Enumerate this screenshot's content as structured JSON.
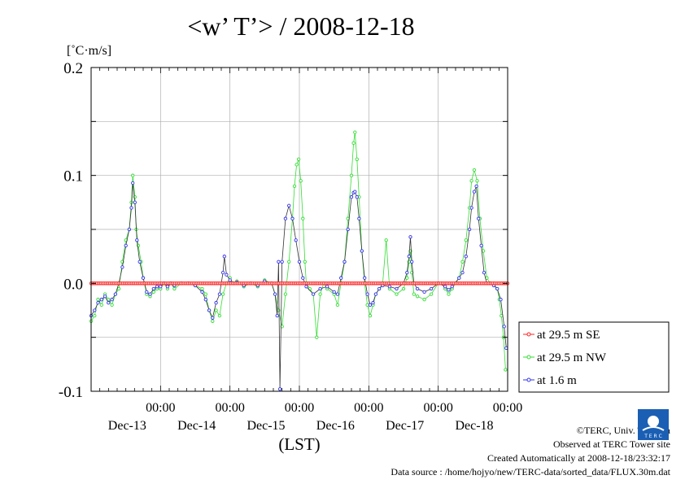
{
  "chart_data": {
    "type": "line",
    "title": "<w’ T’> / 2008-12-18",
    "ylabel": "[˚C·m/s]",
    "xlabel": "(LST)",
    "ylim": [
      -0.1,
      0.2
    ],
    "yticks": [
      -0.1,
      0.0,
      0.1,
      0.2
    ],
    "ytick_labels": [
      "-0.1",
      "0.0",
      "0.1",
      "0.2"
    ],
    "xlim_days": [
      0,
      6
    ],
    "xticks": [
      {
        "day": 1,
        "time": "00:00",
        "date": "Dec-13"
      },
      {
        "day": 2,
        "time": "00:00",
        "date": "Dec-14"
      },
      {
        "day": 3,
        "time": "00:00",
        "date": "Dec-15"
      },
      {
        "day": 4,
        "time": "00:00",
        "date": "Dec-16"
      },
      {
        "day": 5,
        "time": "00:00",
        "date": "Dec-17"
      },
      {
        "day": 6,
        "time": "00:00",
        "date": "Dec-18"
      }
    ],
    "grid": true,
    "legend_position": "right",
    "series": [
      {
        "name": "at 29.5 m SE",
        "color": "#ff2020",
        "marker": "circle",
        "points": [
          [
            0.0,
            0.0
          ],
          [
            6.0,
            0.0
          ]
        ]
      },
      {
        "name": "at 29.5 m NW",
        "color": "#33dd33",
        "marker": "circle",
        "points": [
          [
            0.0,
            -0.035
          ],
          [
            0.05,
            -0.03
          ],
          [
            0.1,
            -0.015
          ],
          [
            0.15,
            -0.02
          ],
          [
            0.2,
            -0.01
          ],
          [
            0.25,
            -0.015
          ],
          [
            0.3,
            -0.02
          ],
          [
            0.35,
            -0.01
          ],
          [
            0.4,
            -0.005
          ],
          [
            0.45,
            0.02
          ],
          [
            0.5,
            0.04
          ],
          [
            0.55,
            0.05
          ],
          [
            0.58,
            0.075
          ],
          [
            0.6,
            0.1
          ],
          [
            0.63,
            0.08
          ],
          [
            0.65,
            0.05
          ],
          [
            0.68,
            0.035
          ],
          [
            0.72,
            0.02
          ],
          [
            0.75,
            0.005
          ],
          [
            0.8,
            -0.01
          ],
          [
            0.85,
            -0.012
          ],
          [
            0.9,
            -0.008
          ],
          [
            0.95,
            -0.005
          ],
          [
            1.0,
            -0.005
          ],
          [
            1.05,
            0.0
          ],
          [
            1.1,
            -0.005
          ],
          [
            1.15,
            0.0
          ],
          [
            1.2,
            -0.005
          ],
          [
            1.3,
            0.0
          ],
          [
            1.4,
            0.0
          ],
          [
            1.5,
            -0.002
          ],
          [
            1.6,
            -0.005
          ],
          [
            1.65,
            -0.01
          ],
          [
            1.7,
            -0.025
          ],
          [
            1.75,
            -0.035
          ],
          [
            1.8,
            -0.025
          ],
          [
            1.85,
            -0.03
          ],
          [
            1.9,
            -0.01
          ],
          [
            1.95,
            0.0
          ],
          [
            2.0,
            0.005
          ],
          [
            2.05,
            0.0
          ],
          [
            2.1,
            0.002
          ],
          [
            2.2,
            -0.003
          ],
          [
            2.3,
            0.0
          ],
          [
            2.4,
            -0.003
          ],
          [
            2.5,
            0.003
          ],
          [
            2.6,
            0.0
          ],
          [
            2.65,
            -0.01
          ],
          [
            2.7,
            -0.025
          ],
          [
            2.75,
            -0.04
          ],
          [
            2.8,
            -0.01
          ],
          [
            2.85,
            0.02
          ],
          [
            2.9,
            0.06
          ],
          [
            2.93,
            0.09
          ],
          [
            2.96,
            0.11
          ],
          [
            2.99,
            0.115
          ],
          [
            3.02,
            0.095
          ],
          [
            3.05,
            0.06
          ],
          [
            3.08,
            0.02
          ],
          [
            3.1,
            0.0
          ],
          [
            3.15,
            -0.005
          ],
          [
            3.2,
            -0.01
          ],
          [
            3.25,
            -0.05
          ],
          [
            3.3,
            -0.01
          ],
          [
            3.35,
            0.0
          ],
          [
            3.4,
            -0.005
          ],
          [
            3.5,
            -0.01
          ],
          [
            3.55,
            -0.02
          ],
          [
            3.6,
            0.0
          ],
          [
            3.65,
            0.02
          ],
          [
            3.7,
            0.06
          ],
          [
            3.75,
            0.1
          ],
          [
            3.78,
            0.13
          ],
          [
            3.8,
            0.14
          ],
          [
            3.83,
            0.115
          ],
          [
            3.86,
            0.08
          ],
          [
            3.9,
            0.03
          ],
          [
            3.94,
            0.0
          ],
          [
            3.98,
            -0.02
          ],
          [
            4.02,
            -0.03
          ],
          [
            4.06,
            -0.02
          ],
          [
            4.1,
            -0.01
          ],
          [
            4.15,
            -0.005
          ],
          [
            4.2,
            0.0
          ],
          [
            4.25,
            0.04
          ],
          [
            4.3,
            -0.005
          ],
          [
            4.4,
            -0.01
          ],
          [
            4.5,
            -0.005
          ],
          [
            4.55,
            0.005
          ],
          [
            4.58,
            0.02
          ],
          [
            4.6,
            0.03
          ],
          [
            4.62,
            0.01
          ],
          [
            4.65,
            -0.01
          ],
          [
            4.7,
            -0.012
          ],
          [
            4.8,
            -0.015
          ],
          [
            4.9,
            -0.01
          ],
          [
            5.0,
            0.0
          ],
          [
            5.05,
            0.0
          ],
          [
            5.1,
            -0.005
          ],
          [
            5.15,
            -0.01
          ],
          [
            5.2,
            -0.005
          ],
          [
            5.25,
            0.0
          ],
          [
            5.3,
            0.005
          ],
          [
            5.35,
            0.02
          ],
          [
            5.4,
            0.04
          ],
          [
            5.45,
            0.07
          ],
          [
            5.48,
            0.095
          ],
          [
            5.52,
            0.105
          ],
          [
            5.56,
            0.095
          ],
          [
            5.6,
            0.06
          ],
          [
            5.65,
            0.03
          ],
          [
            5.7,
            0.005
          ],
          [
            5.75,
            0.0
          ],
          [
            5.8,
            0.0
          ],
          [
            5.85,
            -0.005
          ],
          [
            5.88,
            -0.015
          ],
          [
            5.91,
            -0.03
          ],
          [
            5.94,
            -0.05
          ],
          [
            5.97,
            -0.08
          ]
        ]
      },
      {
        "name": "at 1.6 m",
        "color": "#3333ee",
        "marker": "circle",
        "points": [
          [
            0.0,
            -0.03
          ],
          [
            0.05,
            -0.025
          ],
          [
            0.1,
            -0.018
          ],
          [
            0.15,
            -0.015
          ],
          [
            0.2,
            -0.012
          ],
          [
            0.25,
            -0.018
          ],
          [
            0.3,
            -0.015
          ],
          [
            0.35,
            -0.01
          ],
          [
            0.4,
            0.0
          ],
          [
            0.45,
            0.015
          ],
          [
            0.5,
            0.035
          ],
          [
            0.55,
            0.05
          ],
          [
            0.58,
            0.07
          ],
          [
            0.6,
            0.093
          ],
          [
            0.63,
            0.075
          ],
          [
            0.66,
            0.04
          ],
          [
            0.7,
            0.02
          ],
          [
            0.75,
            0.005
          ],
          [
            0.8,
            -0.008
          ],
          [
            0.85,
            -0.01
          ],
          [
            0.9,
            -0.005
          ],
          [
            0.95,
            -0.003
          ],
          [
            1.0,
            -0.003
          ],
          [
            1.05,
            0.0
          ],
          [
            1.1,
            -0.003
          ],
          [
            1.15,
            0.0
          ],
          [
            1.2,
            -0.002
          ],
          [
            1.3,
            0.0
          ],
          [
            1.4,
            0.0
          ],
          [
            1.5,
            -0.002
          ],
          [
            1.6,
            -0.008
          ],
          [
            1.65,
            -0.015
          ],
          [
            1.7,
            -0.025
          ],
          [
            1.75,
            -0.032
          ],
          [
            1.8,
            -0.018
          ],
          [
            1.85,
            -0.01
          ],
          [
            1.9,
            0.01
          ],
          [
            1.92,
            0.025
          ],
          [
            1.95,
            0.008
          ],
          [
            2.0,
            0.003
          ],
          [
            2.05,
            0.0
          ],
          [
            2.1,
            0.001
          ],
          [
            2.2,
            -0.002
          ],
          [
            2.3,
            0.0
          ],
          [
            2.4,
            -0.002
          ],
          [
            2.5,
            0.002
          ],
          [
            2.6,
            0.0
          ],
          [
            2.65,
            -0.01
          ],
          [
            2.68,
            -0.03
          ],
          [
            2.7,
            0.02
          ],
          [
            2.72,
            -0.098
          ],
          [
            2.75,
            0.02
          ],
          [
            2.8,
            0.06
          ],
          [
            2.85,
            0.072
          ],
          [
            2.9,
            0.06
          ],
          [
            2.95,
            0.04
          ],
          [
            3.0,
            0.02
          ],
          [
            3.05,
            0.005
          ],
          [
            3.1,
            -0.003
          ],
          [
            3.2,
            -0.01
          ],
          [
            3.3,
            -0.005
          ],
          [
            3.4,
            -0.003
          ],
          [
            3.5,
            -0.008
          ],
          [
            3.55,
            -0.01
          ],
          [
            3.6,
            0.005
          ],
          [
            3.65,
            0.02
          ],
          [
            3.7,
            0.05
          ],
          [
            3.75,
            0.08
          ],
          [
            3.78,
            0.084
          ],
          [
            3.8,
            0.085
          ],
          [
            3.83,
            0.08
          ],
          [
            3.86,
            0.06
          ],
          [
            3.9,
            0.03
          ],
          [
            3.94,
            0.005
          ],
          [
            3.98,
            -0.01
          ],
          [
            4.02,
            -0.02
          ],
          [
            4.06,
            -0.018
          ],
          [
            4.1,
            -0.01
          ],
          [
            4.15,
            -0.005
          ],
          [
            4.2,
            -0.002
          ],
          [
            4.3,
            -0.003
          ],
          [
            4.4,
            -0.005
          ],
          [
            4.5,
            0.0
          ],
          [
            4.55,
            0.01
          ],
          [
            4.58,
            0.025
          ],
          [
            4.6,
            0.043
          ],
          [
            4.62,
            0.02
          ],
          [
            4.65,
            0.0
          ],
          [
            4.7,
            -0.005
          ],
          [
            4.8,
            -0.008
          ],
          [
            4.9,
            -0.005
          ],
          [
            5.0,
            0.0
          ],
          [
            5.1,
            -0.003
          ],
          [
            5.15,
            -0.006
          ],
          [
            5.2,
            -0.003
          ],
          [
            5.3,
            0.005
          ],
          [
            5.35,
            0.01
          ],
          [
            5.4,
            0.025
          ],
          [
            5.45,
            0.05
          ],
          [
            5.48,
            0.07
          ],
          [
            5.52,
            0.085
          ],
          [
            5.55,
            0.09
          ],
          [
            5.58,
            0.06
          ],
          [
            5.62,
            0.035
          ],
          [
            5.66,
            0.01
          ],
          [
            5.7,
            0.0
          ],
          [
            5.75,
            0.0
          ],
          [
            5.8,
            -0.002
          ],
          [
            5.85,
            -0.005
          ],
          [
            5.9,
            -0.015
          ],
          [
            5.95,
            -0.04
          ],
          [
            5.98,
            -0.06
          ]
        ]
      }
    ]
  },
  "credits": {
    "copyright": "©TERC, Univ. Tsukuba",
    "observed": "Observed at TERC Tower site",
    "created": "Created Automatically at 2008-12-18/23:32:17",
    "source": "Data source : /home/hojyo/new/TERC-data/sorted_data/FLUX.30m.dat",
    "logo_text": "T E R C"
  }
}
